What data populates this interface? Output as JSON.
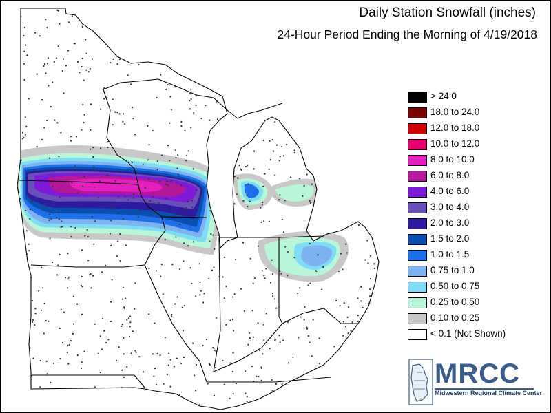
{
  "title": "Daily Station Snowfall (inches)",
  "subtitle": "24-Hour Period Ending the Morning of 4/19/2018",
  "legend": [
    {
      "label": "> 24.0",
      "color": "#000000"
    },
    {
      "label": "18.0 to 24.0",
      "color": "#7a0000"
    },
    {
      "label": "12.0 to 18.0",
      "color": "#d10000"
    },
    {
      "label": "10.0 to 12.0",
      "color": "#e8006e"
    },
    {
      "label": "8.0 to 10.0",
      "color": "#e51fbd"
    },
    {
      "label": "6.0 to 8.0",
      "color": "#b3179a"
    },
    {
      "label": "4.0 to 6.0",
      "color": "#7f1ad6"
    },
    {
      "label": "3.0 to 4.0",
      "color": "#6a4fba"
    },
    {
      "label": "2.0 to 3.0",
      "color": "#2e1c9e"
    },
    {
      "label": "1.5 to 2.0",
      "color": "#0a4fb0"
    },
    {
      "label": "1.0 to 1.5",
      "color": "#1f6fe8"
    },
    {
      "label": "0.75 to 1.0",
      "color": "#7fb2f0"
    },
    {
      "label": "0.50 to 0.75",
      "color": "#7fdcf5"
    },
    {
      "label": "0.25 to 0.50",
      "color": "#b8f5d9"
    },
    {
      "label": "0.10 to 0.25",
      "color": "#c8c8c8"
    },
    {
      "label": "< 0.1 (Not Shown)",
      "color": "#ffffff"
    }
  ],
  "logo": {
    "name": "MRCC",
    "full_name": "Midwestern Regional Climate Center"
  },
  "colors": {
    "background": "#ffffff",
    "state_borders": "#000000",
    "station_dots": "#333333"
  }
}
